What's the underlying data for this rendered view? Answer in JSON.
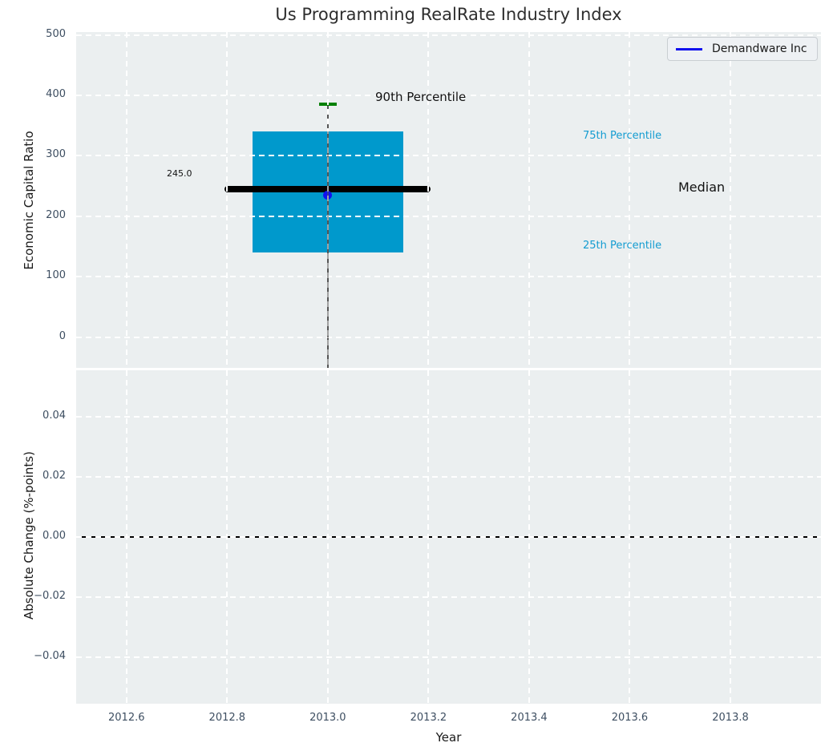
{
  "title": "Us Programming RealRate Industry Index",
  "colors": {
    "axes_bg": "#ebeff0",
    "grid": "#ffffff",
    "box_fill": "#0099cc",
    "median_line": "#000000",
    "p90_cap": "#008000",
    "whisker": "#565656",
    "company_point": "#1111ee",
    "legend_line": "#1111ee",
    "zero_line": "#000000",
    "tick_label": "#3d4e61",
    "percentile_text": "#149cd1"
  },
  "legend": {
    "label": "Demandware Inc"
  },
  "axis_labels": {
    "top_y": "Economic Capital Ratio",
    "bottom_y": "Absolute Change (%-points)",
    "x": "Year"
  },
  "annotations": {
    "p90_label": "90th Percentile",
    "p75_label": "75th Percentile",
    "median_label": "Median",
    "p25_label": "25th Percentile",
    "median_value": "245.0"
  },
  "chart_data": [
    {
      "type": "boxplot",
      "title": "Us Programming RealRate Industry Index",
      "ylabel": "Economic Capital Ratio",
      "xlim": [
        2012.5,
        2013.98
      ],
      "ylim": [
        -51,
        505
      ],
      "grid": "white dashed",
      "legend_position": "upper right",
      "xticks": {
        "values": [
          2012.6,
          2012.8,
          2013.0,
          2013.2,
          2013.4,
          2013.6,
          2013.8
        ],
        "labels": [
          "2012.6",
          "2012.8",
          "2013.0",
          "2013.2",
          "2013.4",
          "2013.6",
          "2013.8"
        ]
      },
      "yticks": {
        "values": [
          0,
          100,
          200,
          300,
          400,
          500
        ],
        "labels": [
          "0",
          "100",
          "200",
          "300",
          "400",
          "500"
        ]
      },
      "box": {
        "x_center": 2013.0,
        "box_halfwidth": 0.15,
        "median_halfwidth": 0.2,
        "cap_halfwidth": 0.017,
        "p90": 385,
        "p75": 341,
        "median": 245,
        "p25": 140,
        "whisker_low_clipped_below_axis": true
      },
      "series": [
        {
          "name": "Demandware Inc",
          "type": "point",
          "x": [
            2013.0
          ],
          "y": [
            235
          ]
        }
      ]
    },
    {
      "type": "line",
      "ylabel": "Absolute Change (%-points)",
      "xlabel": "Year",
      "xlim": [
        2012.5,
        2013.98
      ],
      "ylim": [
        -0.0555,
        0.0555
      ],
      "grid": "white dashed",
      "xticks": {
        "values": [
          2012.6,
          2012.8,
          2013.0,
          2013.2,
          2013.4,
          2013.6,
          2013.8
        ],
        "labels": [
          "2012.6",
          "2012.8",
          "2013.0",
          "2013.2",
          "2013.4",
          "2013.6",
          "2013.8"
        ]
      },
      "yticks": {
        "values": [
          0.04,
          0.02,
          0.0,
          -0.02,
          -0.04
        ],
        "labels": [
          "0.04",
          "0.02",
          "0.00",
          "−0.02",
          "−0.04"
        ]
      },
      "zero_line": 0.0,
      "series": []
    }
  ]
}
